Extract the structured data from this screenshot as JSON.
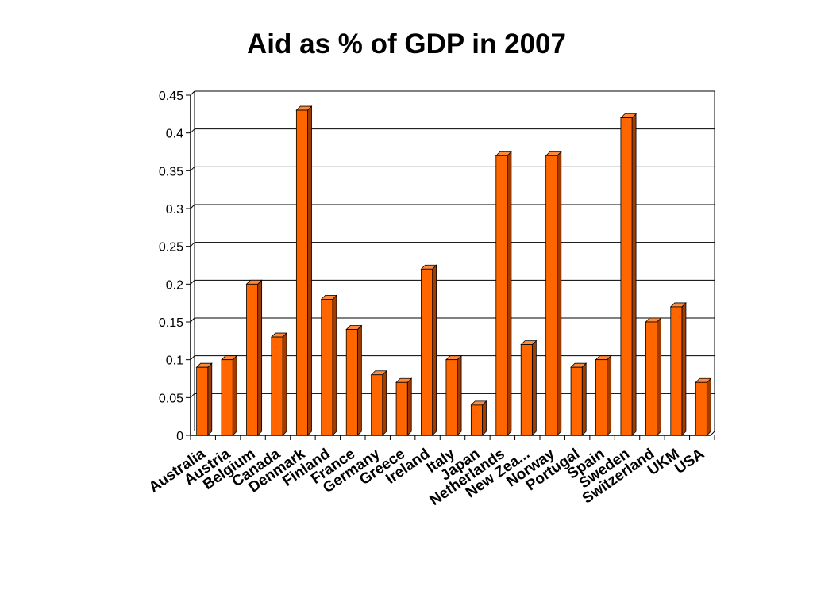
{
  "chart_data": {
    "type": "bar",
    "title": "Aid as % of GDP in 2007",
    "xlabel": "",
    "ylabel": "",
    "ylim": [
      0,
      0.45
    ],
    "yticks": [
      "0",
      "0.05",
      "0.1",
      "0.15",
      "0.2",
      "0.25",
      "0.3",
      "0.35",
      "0.4",
      "0.45"
    ],
    "grid": true,
    "legend": "none",
    "bar_color": "#ff6600",
    "categories": [
      "Australia",
      "Austria",
      "Belgium",
      "Canada",
      "Denmark",
      "Finland",
      "France",
      "Germany",
      "Greece",
      "Ireland",
      "Italy",
      "Japan",
      "Netherlands",
      "New Zea...",
      "Norway",
      "Portugal",
      "Spain",
      "Sweden",
      "Switzerland",
      "UKM",
      "USA"
    ],
    "values": [
      0.09,
      0.1,
      0.2,
      0.13,
      0.43,
      0.18,
      0.14,
      0.08,
      0.07,
      0.22,
      0.1,
      0.04,
      0.37,
      0.12,
      0.37,
      0.09,
      0.1,
      0.42,
      0.15,
      0.17,
      0.07
    ]
  }
}
